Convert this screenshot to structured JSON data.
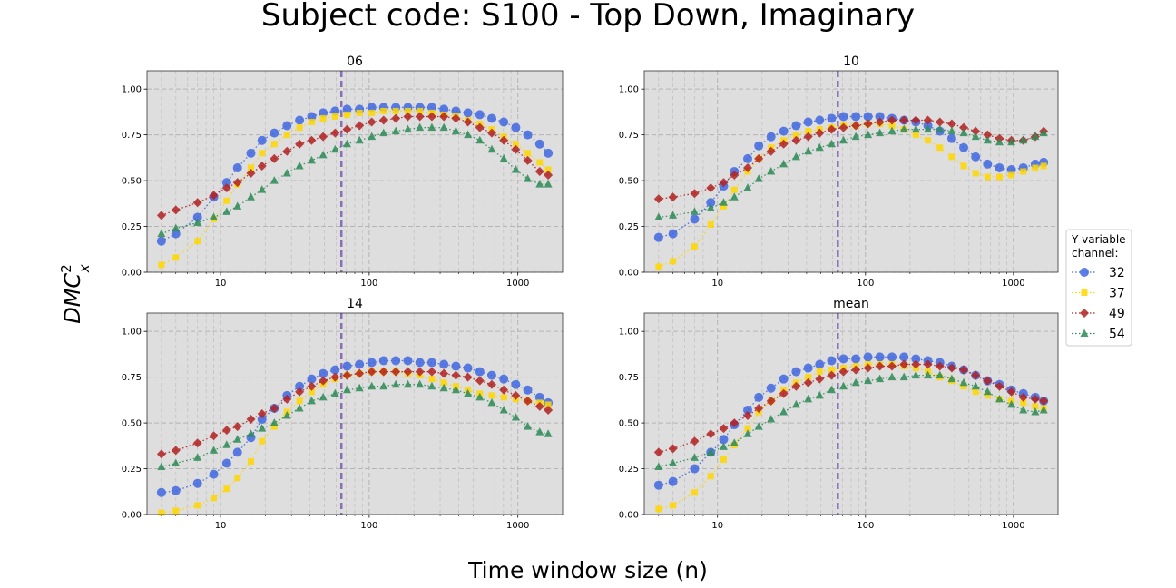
{
  "figure": {
    "title": "Subject code: S100 - Top Down, Imaginary",
    "xlabel": "Time window size (n)",
    "ylabel_main": "DMC",
    "ylabel_sup": "2",
    "ylabel_sub": "x"
  },
  "legend": {
    "title_line1": "Y variable",
    "title_line2": "channel:",
    "entries": [
      {
        "label": "32",
        "color": "#4169e1",
        "marker": "circle"
      },
      {
        "label": "37",
        "color": "#ffd700",
        "marker": "square"
      },
      {
        "label": "49",
        "color": "#b22222",
        "marker": "diamond"
      },
      {
        "label": "54",
        "color": "#2e8b57",
        "marker": "triangle"
      }
    ],
    "placement": "right-center"
  },
  "chart_data": [
    {
      "type": "line",
      "title": "06",
      "x": [
        4,
        5,
        7,
        9,
        11,
        13,
        16,
        19,
        23,
        28,
        34,
        41,
        49,
        59,
        71,
        86,
        104,
        125,
        151,
        182,
        219,
        264,
        318,
        383,
        461,
        555,
        668,
        804,
        968,
        1165,
        1403,
        1600
      ],
      "xscale": "log",
      "xlim": [
        3.2,
        2000
      ],
      "ylim": [
        0,
        1.1
      ],
      "yticks": [
        "0.00",
        "0.25",
        "0.50",
        "0.75",
        "1.00"
      ],
      "xticks": [
        "10",
        "100",
        "1000"
      ],
      "vline_x": 65,
      "grid": true,
      "series": [
        {
          "name": "32",
          "values": [
            0.17,
            0.21,
            0.3,
            0.41,
            0.49,
            0.57,
            0.65,
            0.72,
            0.76,
            0.8,
            0.83,
            0.85,
            0.87,
            0.88,
            0.89,
            0.89,
            0.9,
            0.9,
            0.9,
            0.9,
            0.9,
            0.9,
            0.89,
            0.88,
            0.87,
            0.86,
            0.84,
            0.82,
            0.79,
            0.75,
            0.7,
            0.65
          ]
        },
        {
          "name": "37",
          "values": [
            0.04,
            0.08,
            0.17,
            0.29,
            0.39,
            0.48,
            0.57,
            0.65,
            0.7,
            0.75,
            0.79,
            0.82,
            0.84,
            0.85,
            0.86,
            0.87,
            0.87,
            0.88,
            0.88,
            0.88,
            0.88,
            0.87,
            0.86,
            0.85,
            0.83,
            0.81,
            0.78,
            0.74,
            0.7,
            0.65,
            0.6,
            0.56
          ]
        },
        {
          "name": "49",
          "values": [
            0.31,
            0.34,
            0.38,
            0.42,
            0.46,
            0.49,
            0.54,
            0.58,
            0.62,
            0.66,
            0.7,
            0.72,
            0.74,
            0.76,
            0.78,
            0.8,
            0.82,
            0.83,
            0.84,
            0.85,
            0.85,
            0.85,
            0.85,
            0.84,
            0.82,
            0.79,
            0.76,
            0.72,
            0.67,
            0.61,
            0.55,
            0.53
          ]
        },
        {
          "name": "54",
          "values": [
            0.21,
            0.24,
            0.27,
            0.3,
            0.33,
            0.36,
            0.41,
            0.45,
            0.5,
            0.54,
            0.58,
            0.61,
            0.64,
            0.67,
            0.7,
            0.72,
            0.74,
            0.76,
            0.77,
            0.78,
            0.79,
            0.79,
            0.79,
            0.77,
            0.75,
            0.72,
            0.67,
            0.62,
            0.56,
            0.51,
            0.48,
            0.48
          ]
        }
      ]
    },
    {
      "type": "line",
      "title": "10",
      "x": [
        4,
        5,
        7,
        9,
        11,
        13,
        16,
        19,
        23,
        28,
        34,
        41,
        49,
        59,
        71,
        86,
        104,
        125,
        151,
        182,
        219,
        264,
        318,
        383,
        461,
        555,
        668,
        804,
        968,
        1165,
        1403,
        1600
      ],
      "xscale": "log",
      "xlim": [
        3.2,
        2000
      ],
      "ylim": [
        0,
        1.1
      ],
      "yticks": [
        "0.00",
        "0.25",
        "0.50",
        "0.75",
        "1.00"
      ],
      "xticks": [
        "10",
        "100",
        "1000"
      ],
      "vline_x": 65,
      "grid": true,
      "series": [
        {
          "name": "32",
          "values": [
            0.19,
            0.21,
            0.29,
            0.38,
            0.47,
            0.55,
            0.62,
            0.69,
            0.74,
            0.77,
            0.8,
            0.82,
            0.83,
            0.84,
            0.85,
            0.85,
            0.85,
            0.85,
            0.84,
            0.83,
            0.82,
            0.8,
            0.77,
            0.73,
            0.68,
            0.63,
            0.59,
            0.57,
            0.56,
            0.57,
            0.59,
            0.6
          ]
        },
        {
          "name": "37",
          "values": [
            0.03,
            0.06,
            0.14,
            0.26,
            0.36,
            0.45,
            0.55,
            0.62,
            0.68,
            0.72,
            0.75,
            0.77,
            0.78,
            0.79,
            0.8,
            0.8,
            0.81,
            0.81,
            0.8,
            0.78,
            0.75,
            0.72,
            0.68,
            0.63,
            0.58,
            0.54,
            0.52,
            0.52,
            0.53,
            0.55,
            0.57,
            0.58
          ]
        },
        {
          "name": "49",
          "values": [
            0.4,
            0.41,
            0.43,
            0.46,
            0.49,
            0.53,
            0.57,
            0.62,
            0.66,
            0.7,
            0.72,
            0.74,
            0.76,
            0.78,
            0.79,
            0.8,
            0.81,
            0.82,
            0.83,
            0.83,
            0.83,
            0.83,
            0.82,
            0.81,
            0.79,
            0.77,
            0.75,
            0.73,
            0.72,
            0.72,
            0.74,
            0.77
          ]
        },
        {
          "name": "54",
          "values": [
            0.3,
            0.31,
            0.33,
            0.35,
            0.38,
            0.41,
            0.46,
            0.51,
            0.55,
            0.59,
            0.63,
            0.66,
            0.68,
            0.7,
            0.72,
            0.74,
            0.75,
            0.76,
            0.77,
            0.78,
            0.78,
            0.78,
            0.78,
            0.77,
            0.76,
            0.74,
            0.72,
            0.71,
            0.71,
            0.72,
            0.74,
            0.76
          ]
        }
      ]
    },
    {
      "type": "line",
      "title": "14",
      "x": [
        4,
        5,
        7,
        9,
        11,
        13,
        16,
        19,
        23,
        28,
        34,
        41,
        49,
        59,
        71,
        86,
        104,
        125,
        151,
        182,
        219,
        264,
        318,
        383,
        461,
        555,
        668,
        804,
        968,
        1165,
        1403,
        1600
      ],
      "xscale": "log",
      "xlim": [
        3.2,
        2000
      ],
      "ylim": [
        0,
        1.1
      ],
      "yticks": [
        "0.00",
        "0.25",
        "0.50",
        "0.75",
        "1.00"
      ],
      "xticks": [
        "10",
        "100",
        "1000"
      ],
      "vline_x": 65,
      "grid": true,
      "series": [
        {
          "name": "32",
          "values": [
            0.12,
            0.13,
            0.17,
            0.22,
            0.28,
            0.34,
            0.42,
            0.52,
            0.58,
            0.65,
            0.7,
            0.74,
            0.77,
            0.79,
            0.81,
            0.82,
            0.83,
            0.84,
            0.84,
            0.84,
            0.83,
            0.83,
            0.82,
            0.81,
            0.8,
            0.78,
            0.76,
            0.74,
            0.71,
            0.68,
            0.64,
            0.61
          ]
        },
        {
          "name": "37",
          "values": [
            0.01,
            0.02,
            0.05,
            0.09,
            0.14,
            0.2,
            0.29,
            0.4,
            0.48,
            0.56,
            0.62,
            0.67,
            0.71,
            0.74,
            0.76,
            0.77,
            0.78,
            0.78,
            0.78,
            0.77,
            0.76,
            0.74,
            0.72,
            0.7,
            0.68,
            0.66,
            0.65,
            0.64,
            0.63,
            0.62,
            0.61,
            0.6
          ]
        },
        {
          "name": "49",
          "values": [
            0.33,
            0.35,
            0.39,
            0.43,
            0.46,
            0.48,
            0.52,
            0.55,
            0.58,
            0.63,
            0.67,
            0.7,
            0.73,
            0.75,
            0.76,
            0.77,
            0.78,
            0.78,
            0.78,
            0.78,
            0.78,
            0.78,
            0.77,
            0.76,
            0.75,
            0.73,
            0.71,
            0.68,
            0.65,
            0.62,
            0.59,
            0.57
          ]
        },
        {
          "name": "54",
          "values": [
            0.26,
            0.28,
            0.31,
            0.35,
            0.38,
            0.41,
            0.44,
            0.47,
            0.5,
            0.54,
            0.58,
            0.62,
            0.64,
            0.66,
            0.68,
            0.69,
            0.7,
            0.7,
            0.71,
            0.71,
            0.71,
            0.7,
            0.69,
            0.68,
            0.66,
            0.64,
            0.61,
            0.57,
            0.53,
            0.48,
            0.45,
            0.44
          ]
        }
      ]
    },
    {
      "type": "line",
      "title": "mean",
      "x": [
        4,
        5,
        7,
        9,
        11,
        13,
        16,
        19,
        23,
        28,
        34,
        41,
        49,
        59,
        71,
        86,
        104,
        125,
        151,
        182,
        219,
        264,
        318,
        383,
        461,
        555,
        668,
        804,
        968,
        1165,
        1403,
        1600
      ],
      "xscale": "log",
      "xlim": [
        3.2,
        2000
      ],
      "ylim": [
        0,
        1.1
      ],
      "yticks": [
        "0.00",
        "0.25",
        "0.50",
        "0.75",
        "1.00"
      ],
      "xticks": [
        "10",
        "100",
        "1000"
      ],
      "vline_x": 65,
      "grid": true,
      "series": [
        {
          "name": "32",
          "values": [
            0.16,
            0.18,
            0.25,
            0.34,
            0.41,
            0.49,
            0.57,
            0.64,
            0.69,
            0.74,
            0.78,
            0.8,
            0.82,
            0.84,
            0.85,
            0.85,
            0.86,
            0.86,
            0.86,
            0.86,
            0.85,
            0.84,
            0.83,
            0.81,
            0.79,
            0.76,
            0.73,
            0.71,
            0.68,
            0.66,
            0.64,
            0.62
          ]
        },
        {
          "name": "37",
          "values": [
            0.03,
            0.05,
            0.12,
            0.21,
            0.3,
            0.38,
            0.47,
            0.56,
            0.62,
            0.68,
            0.72,
            0.75,
            0.78,
            0.79,
            0.8,
            0.81,
            0.82,
            0.82,
            0.82,
            0.81,
            0.8,
            0.78,
            0.75,
            0.73,
            0.7,
            0.67,
            0.65,
            0.63,
            0.62,
            0.61,
            0.59,
            0.58
          ]
        },
        {
          "name": "49",
          "values": [
            0.34,
            0.36,
            0.4,
            0.44,
            0.47,
            0.5,
            0.54,
            0.58,
            0.62,
            0.66,
            0.7,
            0.72,
            0.74,
            0.76,
            0.78,
            0.79,
            0.8,
            0.81,
            0.81,
            0.82,
            0.82,
            0.82,
            0.81,
            0.8,
            0.79,
            0.76,
            0.73,
            0.7,
            0.67,
            0.64,
            0.63,
            0.62
          ]
        },
        {
          "name": "54",
          "values": [
            0.26,
            0.28,
            0.31,
            0.34,
            0.37,
            0.39,
            0.44,
            0.48,
            0.52,
            0.56,
            0.6,
            0.63,
            0.65,
            0.68,
            0.7,
            0.72,
            0.73,
            0.74,
            0.75,
            0.75,
            0.76,
            0.76,
            0.76,
            0.74,
            0.72,
            0.7,
            0.67,
            0.63,
            0.6,
            0.57,
            0.56,
            0.57
          ]
        }
      ]
    }
  ]
}
